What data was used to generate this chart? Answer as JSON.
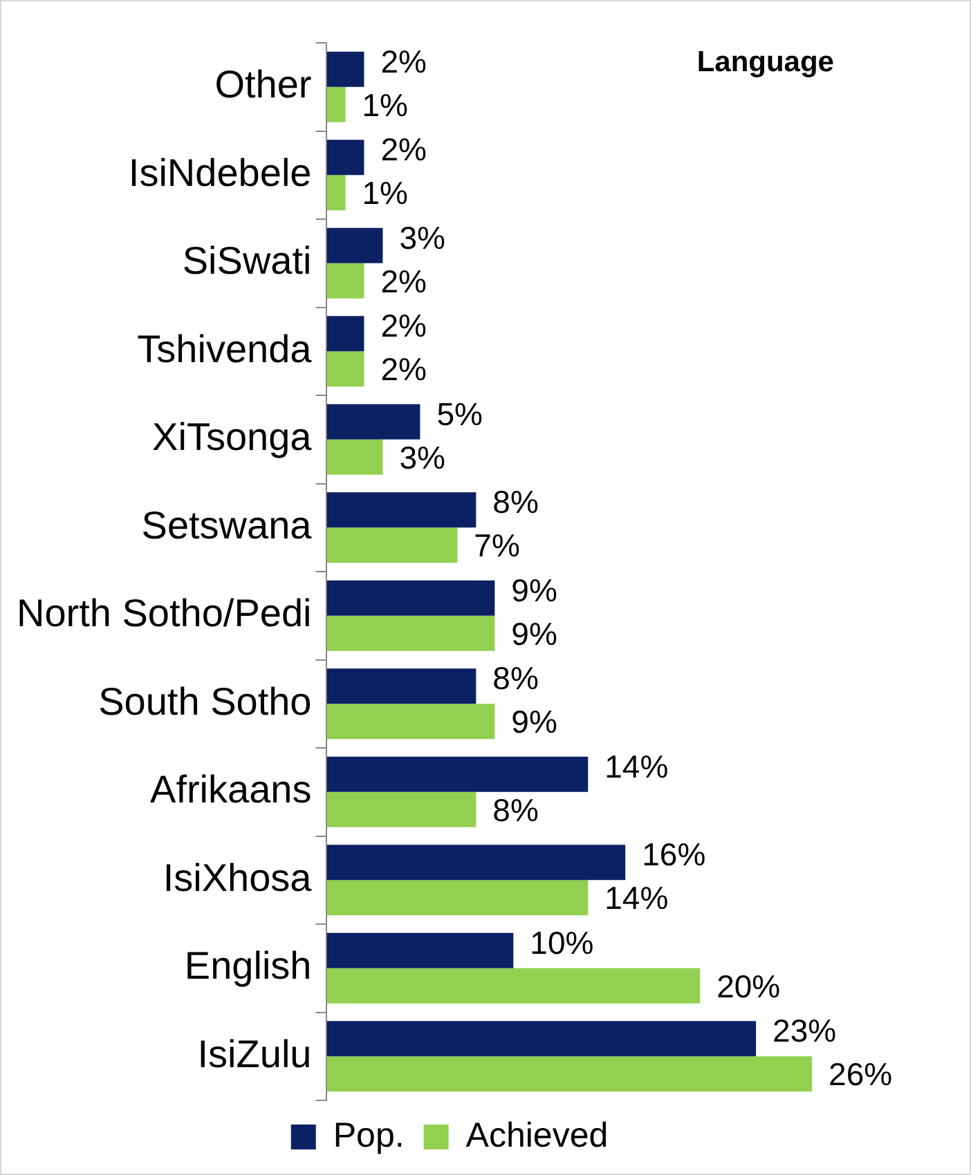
{
  "chart_data": {
    "type": "bar",
    "orientation": "horizontal",
    "title": "Language",
    "categories": [
      "Other",
      "IsiNdebele",
      "SiSwati",
      "Tshivenda",
      "XiTsonga",
      "Setswana",
      "North Sotho/Pedi",
      "South Sotho",
      "Afrikaans",
      "IsiXhosa",
      "English",
      "IsiZulu"
    ],
    "series": [
      {
        "name": "Pop.",
        "color": "#0c2064",
        "values": [
          2,
          2,
          3,
          2,
          5,
          8,
          9,
          8,
          14,
          16,
          10,
          23
        ],
        "value_labels": [
          "2%",
          "2%",
          "3%",
          "2%",
          "5%",
          "8%",
          "9%",
          "8%",
          "14%",
          "16%",
          "10%",
          "23%"
        ]
      },
      {
        "name": "Achieved",
        "color": "#92d050",
        "values": [
          1,
          1,
          2,
          2,
          3,
          7,
          9,
          9,
          8,
          14,
          20,
          26
        ],
        "value_labels": [
          "1%",
          "1%",
          "2%",
          "2%",
          "3%",
          "7%",
          "9%",
          "9%",
          "8%",
          "14%",
          "20%",
          "26%"
        ]
      }
    ],
    "legend": "bottom",
    "grid": false,
    "tick_labels": "y"
  }
}
